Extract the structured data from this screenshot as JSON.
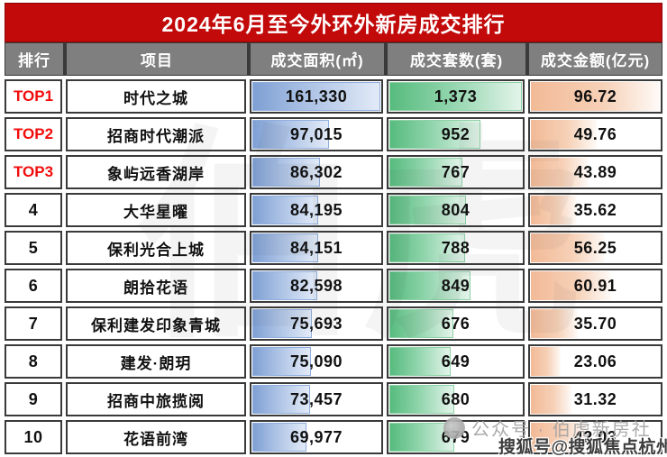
{
  "chart_data": {
    "type": "table",
    "title": "2024年6月至今外环外新房成交排行",
    "columns": [
      "排行",
      "项目",
      "成交面积(㎡)",
      "成交套数(套)",
      "成交金额(亿元)"
    ],
    "max": {
      "area": 161330,
      "units": 1373,
      "amount": 96.72
    },
    "rows": [
      {
        "rank": "TOP1",
        "top": true,
        "project": "时代之城",
        "area": 161330,
        "area_text": "161,330",
        "units": 1373,
        "units_text": "1,373",
        "amount": 96.72,
        "amount_text": "96.72"
      },
      {
        "rank": "TOP2",
        "top": true,
        "project": "招商时代潮派",
        "area": 97015,
        "area_text": "97,015",
        "units": 952,
        "units_text": "952",
        "amount": 49.76,
        "amount_text": "49.76"
      },
      {
        "rank": "TOP3",
        "top": true,
        "project": "象屿远香湖岸",
        "area": 86302,
        "area_text": "86,302",
        "units": 767,
        "units_text": "767",
        "amount": 43.89,
        "amount_text": "43.89"
      },
      {
        "rank": "4",
        "top": false,
        "project": "大华星曜",
        "area": 84195,
        "area_text": "84,195",
        "units": 804,
        "units_text": "804",
        "amount": 35.62,
        "amount_text": "35.62"
      },
      {
        "rank": "5",
        "top": false,
        "project": "保利光合上城",
        "area": 84151,
        "area_text": "84,151",
        "units": 788,
        "units_text": "788",
        "amount": 56.25,
        "amount_text": "56.25"
      },
      {
        "rank": "6",
        "top": false,
        "project": "朗拾花语",
        "area": 82598,
        "area_text": "82,598",
        "units": 849,
        "units_text": "849",
        "amount": 60.91,
        "amount_text": "60.91"
      },
      {
        "rank": "7",
        "top": false,
        "project": "保利建发印象青城",
        "area": 75693,
        "area_text": "75,693",
        "units": 676,
        "units_text": "676",
        "amount": 35.7,
        "amount_text": "35.70"
      },
      {
        "rank": "8",
        "top": false,
        "project": "建发·朗玥",
        "area": 75090,
        "area_text": "75,090",
        "units": 649,
        "units_text": "649",
        "amount": 23.06,
        "amount_text": "23.06"
      },
      {
        "rank": "9",
        "top": false,
        "project": "招商中旅揽阅",
        "area": 73457,
        "area_text": "73,457",
        "units": 680,
        "units_text": "680",
        "amount": 31.32,
        "amount_text": "31.32"
      },
      {
        "rank": "10",
        "top": false,
        "project": "花语前湾",
        "area": 69977,
        "area_text": "69,977",
        "units": 679,
        "units_text": "679",
        "amount": 42.03,
        "amount_text": "42.03"
      }
    ]
  },
  "watermarks": {
    "center": "伯虎",
    "account": "公众号 · 伯虎新房社",
    "sohu": "搜狐号@搜狐焦点杭州站"
  },
  "colors": {
    "title_bg": "#c20a0a",
    "header_bg": "#7f7f7f",
    "grid": "#3a3a3a",
    "top_rank_red": "#f20d0d",
    "bar_blue": "#7fa0d4",
    "bar_green": "#57bb7e",
    "bar_orange": "#f2ba97"
  }
}
